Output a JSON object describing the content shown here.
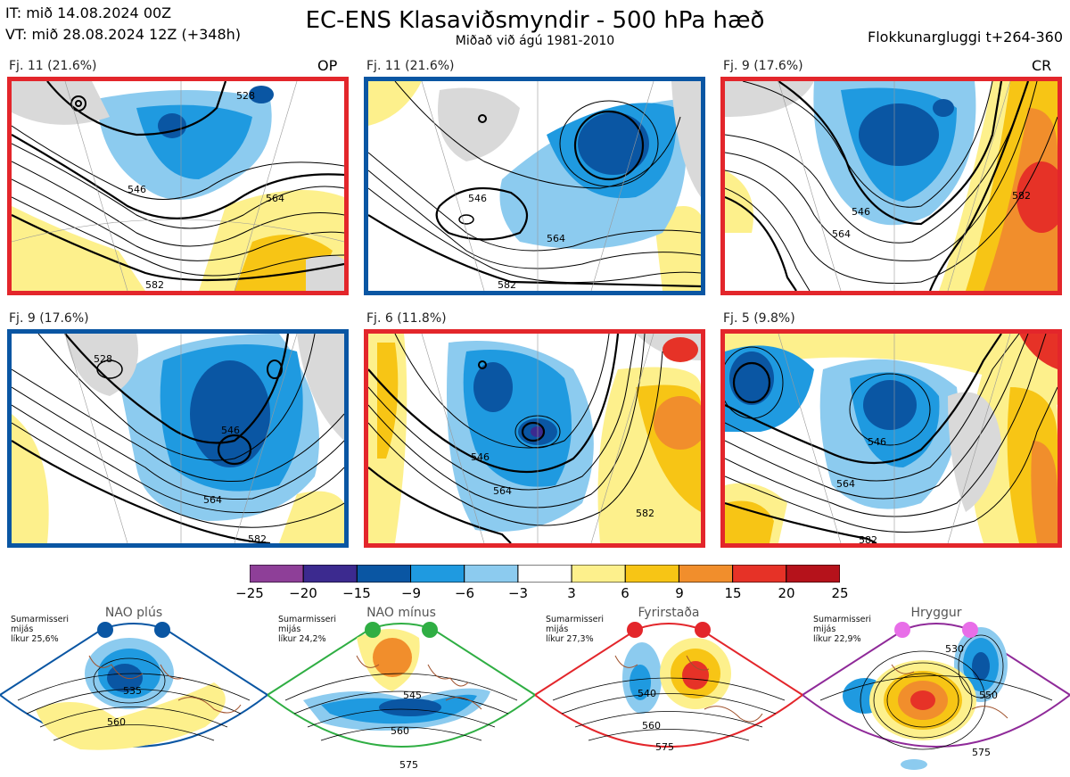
{
  "header": {
    "it": "IT: mið 14.08.2024 00Z",
    "vt": "VT: mið 28.08.2024 12Z  (+348h)",
    "title": "EC-ENS Klasaviðsmyndir - 500 hPa hæð",
    "subtitle": "Miðað við ágú 1981-2010",
    "window": "Flokkunargluggi t+264-360"
  },
  "panels": [
    {
      "label": "Fj. 11 (21.6%)",
      "tag": "OP",
      "border": "red",
      "contours": [
        "528",
        "546",
        "564",
        "582"
      ]
    },
    {
      "label": "Fj. 11 (21.6%)",
      "tag": "",
      "border": "blue",
      "contours": [
        "546",
        "564",
        "582"
      ]
    },
    {
      "label": "Fj. 9 (17.6%)",
      "tag": "CR",
      "border": "red",
      "contours": [
        "546",
        "564",
        "582"
      ]
    },
    {
      "label": "Fj. 9 (17.6%)",
      "tag": "",
      "border": "blue",
      "contours": [
        "528",
        "546",
        "564",
        "582"
      ]
    },
    {
      "label": "Fj. 6 (11.8%)",
      "tag": "",
      "border": "red",
      "contours": [
        "546",
        "564",
        "582"
      ]
    },
    {
      "label": "Fj. 5 (9.8%)",
      "tag": "",
      "border": "red",
      "contours": [
        "546",
        "564",
        "582"
      ]
    }
  ],
  "colorbar": {
    "ticks": [
      "−25",
      "−20",
      "−15",
      "−9",
      "−6",
      "−3",
      "3",
      "6",
      "9",
      "15",
      "20",
      "25"
    ],
    "colors": [
      "#8e3f98",
      "#3c2a8f",
      "#0a56a3",
      "#1f9ae0",
      "#8ccbef",
      "#ffffff",
      "#fdf08c",
      "#f7c515",
      "#f18e2c",
      "#e63227",
      "#b5121b"
    ]
  },
  "regimes": [
    {
      "name": "NAO plús",
      "season": "Sumarmisseri",
      "avg": "mijás",
      "prob": "líkur 25,6%",
      "color": "#0a56a3",
      "contours": [
        "535",
        "560"
      ]
    },
    {
      "name": "NAO mínus",
      "season": "Sumarmisseri",
      "avg": "mijás",
      "prob": "líkur 24,2%",
      "color": "#2fae43",
      "contours": [
        "545",
        "560",
        "575"
      ]
    },
    {
      "name": "Fyrirstaða",
      "season": "Sumarmisseri",
      "avg": "mijás",
      "prob": "líkur 27,3%",
      "color": "#e3262b",
      "contours": [
        "540",
        "560",
        "575"
      ]
    },
    {
      "name": "Hryggur",
      "season": "Sumarmisseri",
      "avg": "mijás",
      "prob": "líkur 22,9%",
      "color": "#8f2a99",
      "contours": [
        "530",
        "550",
        "575"
      ]
    }
  ]
}
